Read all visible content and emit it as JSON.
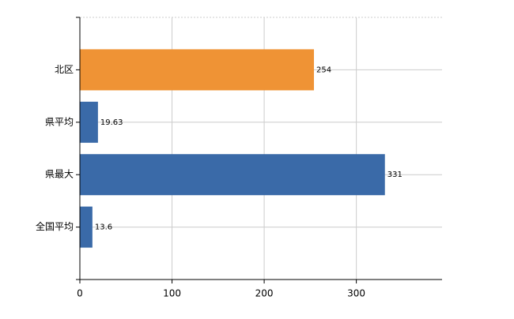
{
  "chart_data": {
    "type": "bar",
    "orientation": "horizontal",
    "categories": [
      "北区",
      "県平均",
      "県最大",
      "全国平均"
    ],
    "values": [
      254,
      19.63,
      331,
      13.6
    ],
    "colors": [
      "#ef9335",
      "#3a6aa8",
      "#3a6aa8",
      "#3a6aa8"
    ],
    "xlim": [
      0,
      393
    ],
    "xticks": [
      0,
      100,
      200,
      300
    ],
    "grid": true
  }
}
